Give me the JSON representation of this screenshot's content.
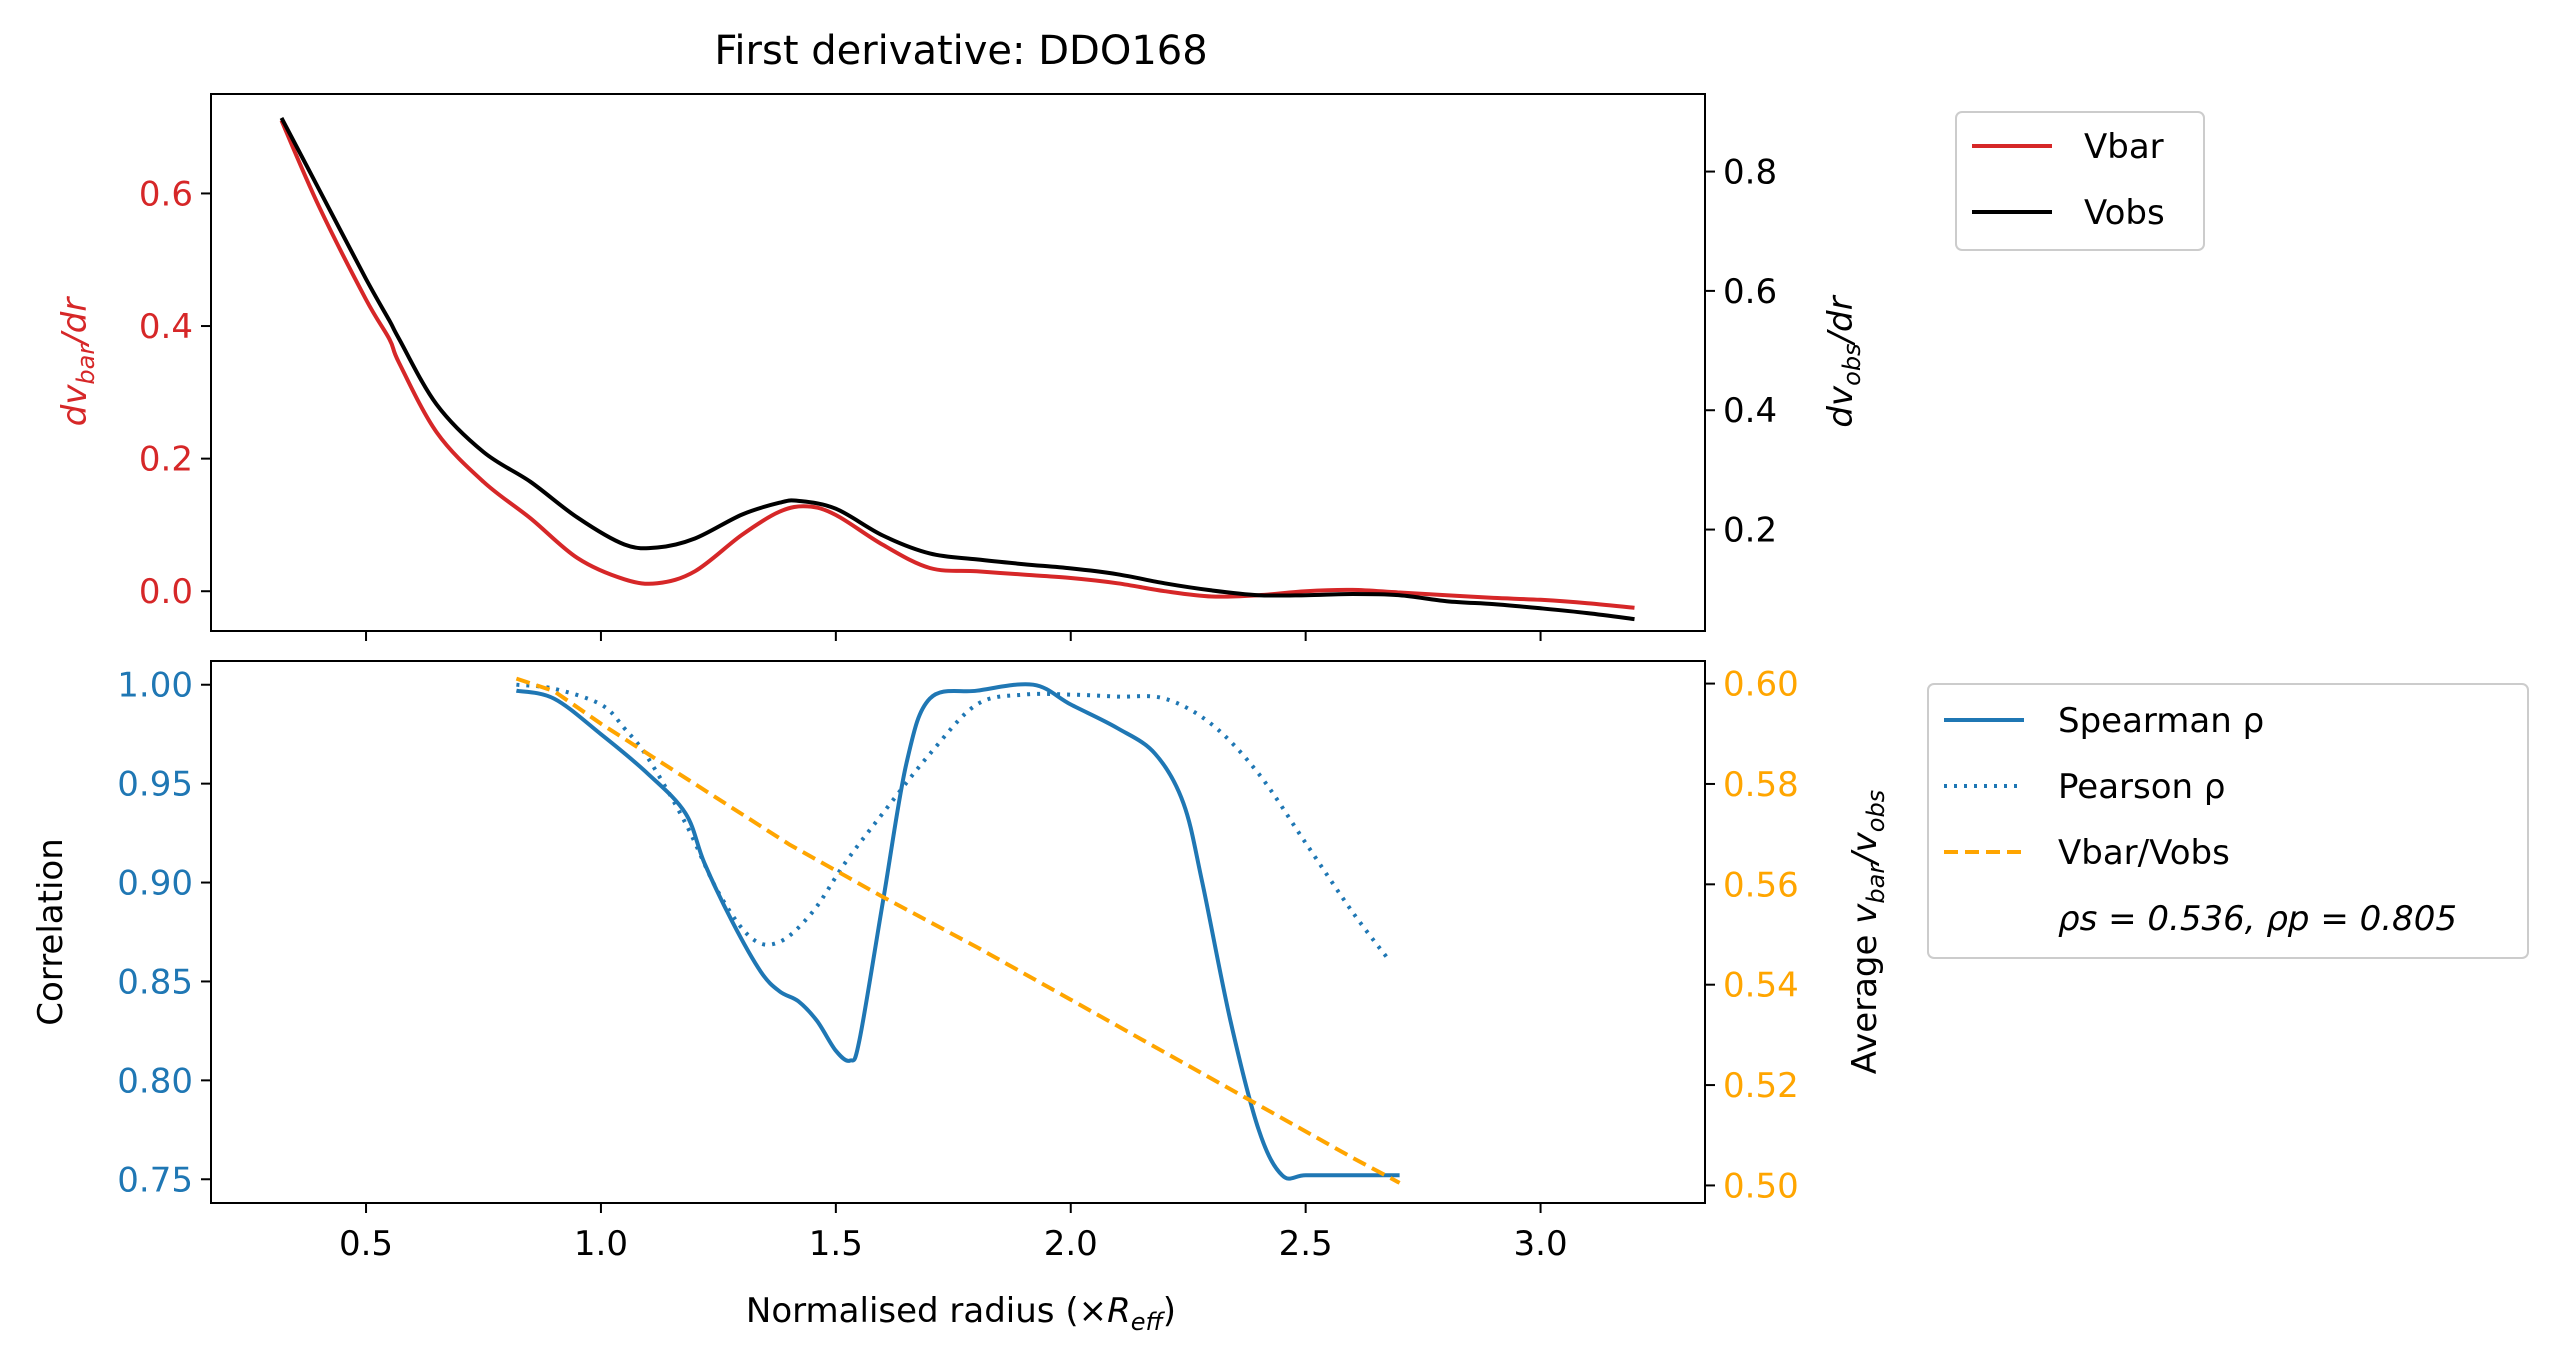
{
  "title": "First derivative: DDO168",
  "xlabel": "Normalised radius (×R_eff)",
  "xlabel_main": "Normalised radius (×",
  "xlabel_R": "R",
  "xlabel_sub": "eff",
  "xlabel_close": ")",
  "colors": {
    "vbar": "#d62728",
    "vobs": "#000000",
    "spearman": "#1f77b4",
    "pearson": "#1f77b4",
    "ratio": "#ffa500",
    "top_left_axis": "#d62728",
    "bottom_left_axis": "#1f77b4",
    "bottom_right_axis": "#ffa500"
  },
  "chart_data": [
    {
      "type": "line",
      "panel": "top",
      "xlim": [
        0.17,
        3.35
      ],
      "ylim_left": [
        -0.06,
        0.75
      ],
      "ylim_right": [
        0.03,
        0.93
      ],
      "ylabel_left": "dv_bar/dr",
      "ylabel_right": "dv_obs/dr",
      "xticks": [
        0.5,
        1.0,
        1.5,
        2.0,
        2.5,
        3.0
      ],
      "yticks_left": [
        "0.0",
        "0.2",
        "0.4",
        "0.6"
      ],
      "yticks_right": [
        "0.2",
        "0.4",
        "0.6",
        "0.8"
      ],
      "legend_position": "outside-right-top",
      "series": [
        {
          "name": "Vbar",
          "axis": "left",
          "x": [
            0.32,
            0.4,
            0.5,
            0.55,
            0.57,
            0.65,
            0.75,
            0.85,
            0.95,
            1.05,
            1.12,
            1.2,
            1.3,
            1.38,
            1.44,
            1.5,
            1.6,
            1.7,
            1.8,
            1.9,
            2.0,
            2.1,
            2.2,
            2.3,
            2.4,
            2.5,
            2.6,
            2.7,
            2.8,
            2.9,
            3.0,
            3.1,
            3.2
          ],
          "y": [
            0.71,
            0.58,
            0.44,
            0.38,
            0.345,
            0.24,
            0.165,
            0.11,
            0.05,
            0.018,
            0.012,
            0.03,
            0.085,
            0.12,
            0.128,
            0.115,
            0.07,
            0.035,
            0.03,
            0.025,
            0.02,
            0.012,
            0.0,
            -0.008,
            -0.006,
            0.0,
            0.002,
            -0.002,
            -0.006,
            -0.01,
            -0.013,
            -0.018,
            -0.025
          ]
        },
        {
          "name": "Vobs",
          "axis": "right",
          "x": [
            0.32,
            0.4,
            0.5,
            0.55,
            0.57,
            0.65,
            0.75,
            0.85,
            0.95,
            1.05,
            1.12,
            1.2,
            1.3,
            1.38,
            1.42,
            1.5,
            1.6,
            1.7,
            1.8,
            1.9,
            2.0,
            2.1,
            2.2,
            2.3,
            2.4,
            2.5,
            2.6,
            2.7,
            2.8,
            2.9,
            3.0,
            3.1,
            3.2
          ],
          "y": [
            0.89,
            0.77,
            0.62,
            0.55,
            0.52,
            0.41,
            0.33,
            0.28,
            0.22,
            0.175,
            0.17,
            0.185,
            0.225,
            0.245,
            0.248,
            0.235,
            0.19,
            0.16,
            0.15,
            0.142,
            0.135,
            0.125,
            0.11,
            0.098,
            0.09,
            0.09,
            0.092,
            0.09,
            0.08,
            0.075,
            0.068,
            0.06,
            0.05
          ]
        }
      ]
    },
    {
      "type": "line",
      "panel": "bottom",
      "xlim": [
        0.17,
        3.35
      ],
      "ylim_left": [
        0.738,
        1.012
      ],
      "ylim_right": [
        0.4965,
        0.6045
      ],
      "ylabel_left": "Correlation",
      "ylabel_right": "Average v_bar/v_obs",
      "xticks": [
        0.5,
        1.0,
        1.5,
        2.0,
        2.5,
        3.0
      ],
      "xtick_labels": [
        "0.5",
        "1.0",
        "1.5",
        "2.0",
        "2.5",
        "3.0"
      ],
      "yticks_left": [
        "0.75",
        "0.80",
        "0.85",
        "0.90",
        "0.95",
        "1.00"
      ],
      "yticks_right": [
        "0.50",
        "0.52",
        "0.54",
        "0.56",
        "0.58",
        "0.60"
      ],
      "legend_position": "outside-right-top",
      "legend_note": "ρs = 0.536, ρp = 0.805",
      "series": [
        {
          "name": "Spearman ρ",
          "axis": "left",
          "style": "solid",
          "x": [
            0.82,
            0.9,
            1.0,
            1.1,
            1.18,
            1.22,
            1.28,
            1.34,
            1.38,
            1.42,
            1.46,
            1.5,
            1.53,
            1.55,
            1.6,
            1.65,
            1.7,
            1.8,
            1.92,
            2.0,
            2.1,
            2.18,
            2.24,
            2.28,
            2.34,
            2.4,
            2.45,
            2.5,
            2.6,
            2.7
          ],
          "y": [
            0.997,
            0.993,
            0.975,
            0.955,
            0.935,
            0.91,
            0.88,
            0.855,
            0.845,
            0.84,
            0.83,
            0.815,
            0.81,
            0.82,
            0.89,
            0.96,
            0.993,
            0.997,
            1.0,
            0.99,
            0.978,
            0.965,
            0.94,
            0.9,
            0.83,
            0.775,
            0.752,
            0.752,
            0.752,
            0.752
          ]
        },
        {
          "name": "Pearson ρ",
          "axis": "left",
          "style": "dotted",
          "x": [
            0.82,
            0.9,
            1.0,
            1.05,
            1.1,
            1.18,
            1.25,
            1.32,
            1.38,
            1.45,
            1.52,
            1.6,
            1.7,
            1.8,
            1.9,
            2.0,
            2.1,
            2.2,
            2.3,
            2.4,
            2.5,
            2.6,
            2.68
          ],
          "y": [
            1.0,
            0.998,
            0.99,
            0.978,
            0.963,
            0.93,
            0.895,
            0.872,
            0.87,
            0.885,
            0.91,
            0.935,
            0.965,
            0.99,
            0.995,
            0.995,
            0.994,
            0.993,
            0.98,
            0.955,
            0.92,
            0.885,
            0.86
          ]
        },
        {
          "name": "Vbar/Vobs",
          "axis": "right",
          "style": "dashed",
          "x": [
            0.82,
            0.9,
            1.0,
            1.2,
            1.4,
            1.6,
            1.8,
            2.0,
            2.2,
            2.4,
            2.6,
            2.7
          ],
          "y": [
            0.601,
            0.5985,
            0.592,
            0.58,
            0.568,
            0.5575,
            0.5475,
            0.537,
            0.5265,
            0.516,
            0.5055,
            0.5005
          ]
        }
      ]
    }
  ]
}
